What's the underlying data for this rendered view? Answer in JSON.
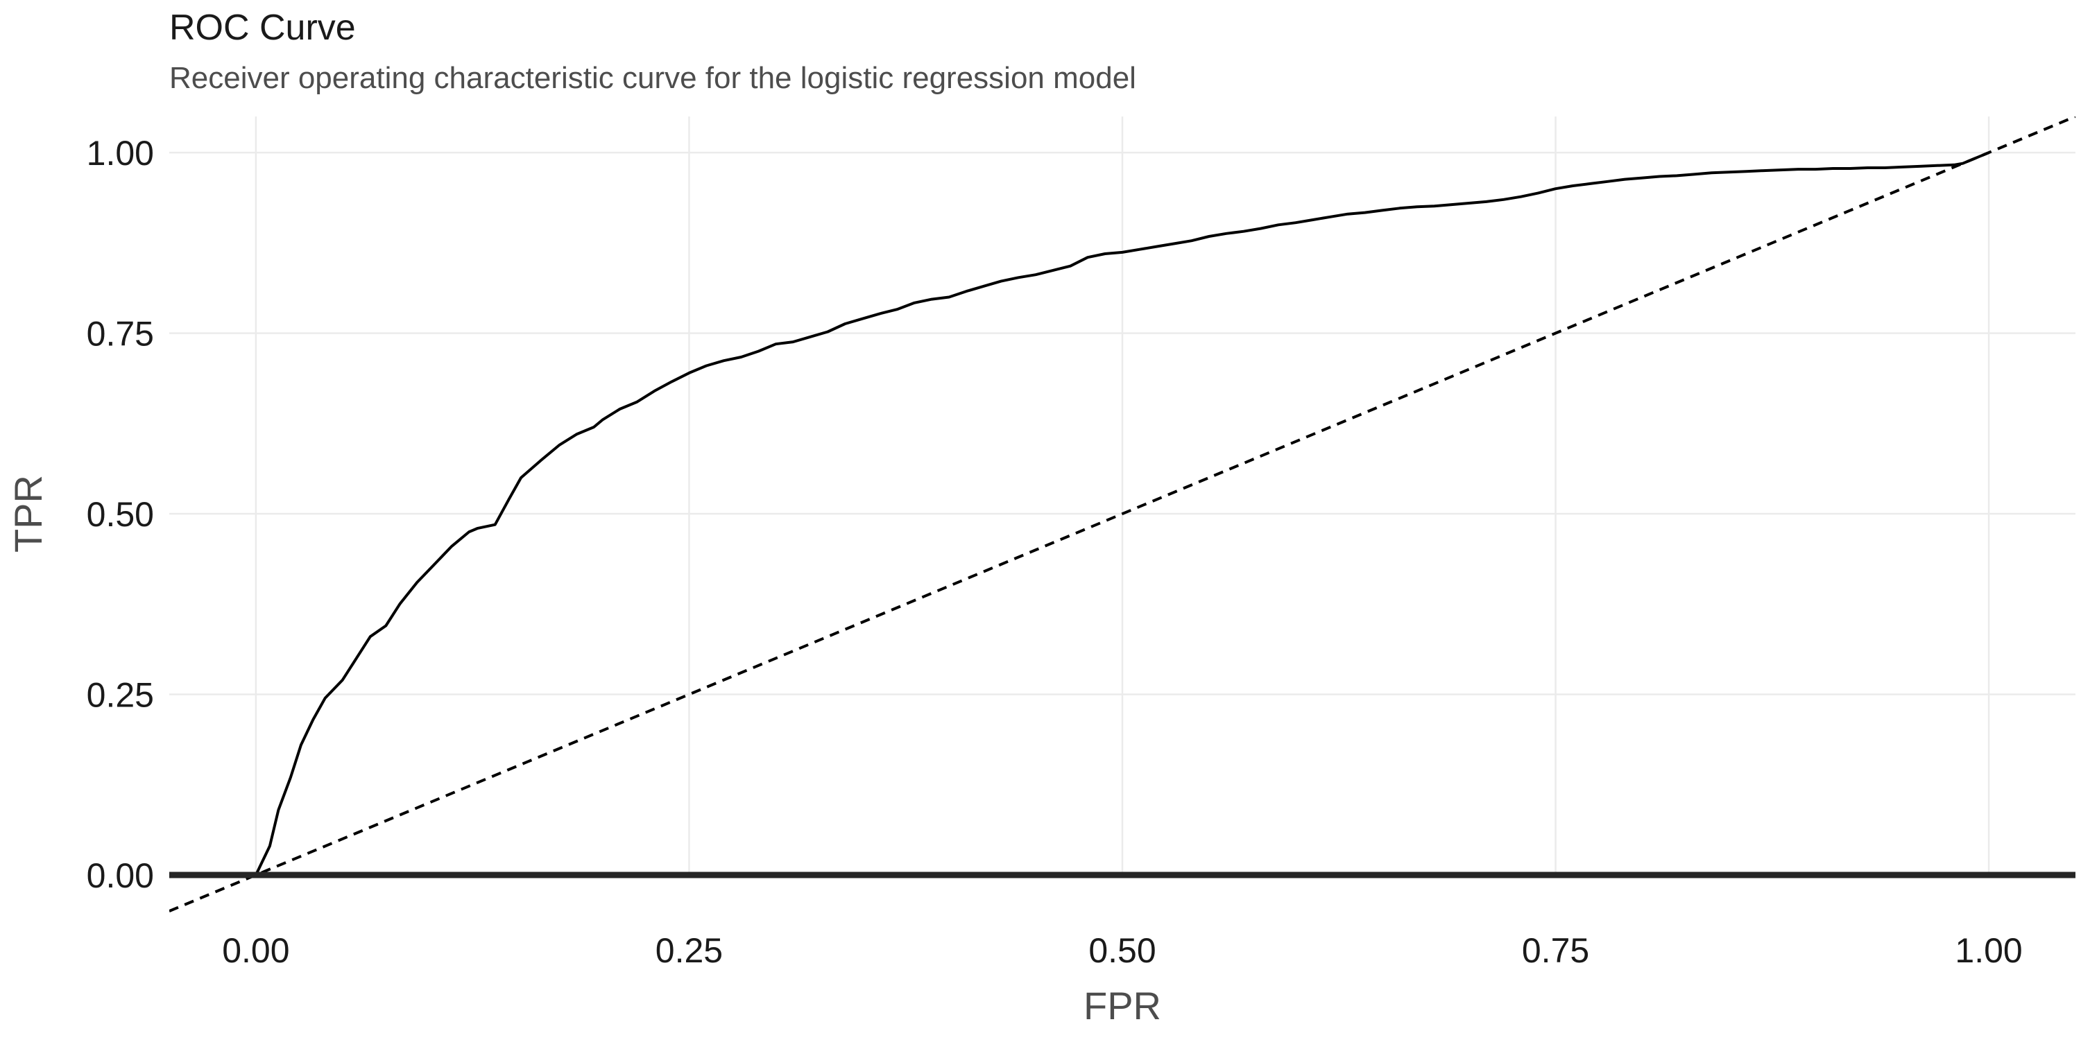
{
  "chart_data": {
    "type": "line",
    "title": "ROC Curve",
    "subtitle": "Receiver operating characteristic curve for the logistic regression model",
    "xlabel": "FPR",
    "ylabel": "TPR",
    "xlim": [
      -0.05,
      1.05
    ],
    "ylim": [
      0,
      1.05
    ],
    "x_ticks": [
      "0.00",
      "0.25",
      "0.50",
      "0.75",
      "1.00"
    ],
    "y_ticks": [
      "0.00",
      "0.25",
      "0.50",
      "0.75",
      "1.00"
    ],
    "grid": true,
    "legend": "none",
    "series": [
      {
        "style": "solid",
        "color": "#000000",
        "x": [
          0.0,
          0.008,
          0.013,
          0.02,
          0.026,
          0.033,
          0.04,
          0.05,
          0.058,
          0.066,
          0.075,
          0.083,
          0.093,
          0.103,
          0.113,
          0.123,
          0.128,
          0.138,
          0.146,
          0.153,
          0.165,
          0.175,
          0.185,
          0.195,
          0.2,
          0.21,
          0.22,
          0.23,
          0.24,
          0.25,
          0.26,
          0.27,
          0.28,
          0.29,
          0.3,
          0.31,
          0.32,
          0.33,
          0.34,
          0.35,
          0.36,
          0.37,
          0.38,
          0.39,
          0.4,
          0.41,
          0.42,
          0.43,
          0.44,
          0.45,
          0.46,
          0.47,
          0.48,
          0.49,
          0.5,
          0.51,
          0.52,
          0.53,
          0.54,
          0.55,
          0.56,
          0.57,
          0.58,
          0.59,
          0.6,
          0.61,
          0.62,
          0.63,
          0.64,
          0.65,
          0.66,
          0.67,
          0.68,
          0.69,
          0.7,
          0.71,
          0.72,
          0.73,
          0.74,
          0.75,
          0.76,
          0.77,
          0.78,
          0.79,
          0.8,
          0.81,
          0.82,
          0.83,
          0.84,
          0.85,
          0.86,
          0.87,
          0.88,
          0.89,
          0.9,
          0.91,
          0.92,
          0.93,
          0.94,
          0.95,
          0.96,
          0.97,
          0.98,
          0.985,
          0.99,
          0.995,
          1.0
        ],
        "y": [
          0.0,
          0.04,
          0.09,
          0.135,
          0.18,
          0.215,
          0.245,
          0.27,
          0.3,
          0.33,
          0.345,
          0.375,
          0.405,
          0.43,
          0.455,
          0.475,
          0.48,
          0.485,
          0.52,
          0.55,
          0.575,
          0.595,
          0.61,
          0.62,
          0.63,
          0.645,
          0.655,
          0.67,
          0.683,
          0.695,
          0.705,
          0.712,
          0.717,
          0.725,
          0.735,
          0.738,
          0.745,
          0.752,
          0.763,
          0.77,
          0.777,
          0.783,
          0.792,
          0.797,
          0.8,
          0.808,
          0.815,
          0.822,
          0.827,
          0.831,
          0.837,
          0.843,
          0.855,
          0.86,
          0.862,
          0.866,
          0.87,
          0.874,
          0.878,
          0.884,
          0.888,
          0.891,
          0.895,
          0.9,
          0.903,
          0.907,
          0.911,
          0.915,
          0.917,
          0.92,
          0.923,
          0.925,
          0.926,
          0.928,
          0.93,
          0.932,
          0.935,
          0.939,
          0.944,
          0.95,
          0.954,
          0.957,
          0.96,
          0.963,
          0.965,
          0.967,
          0.968,
          0.97,
          0.972,
          0.973,
          0.974,
          0.975,
          0.976,
          0.977,
          0.977,
          0.978,
          0.978,
          0.979,
          0.979,
          0.98,
          0.981,
          0.982,
          0.983,
          0.985,
          0.99,
          0.995,
          1.0
        ]
      },
      {
        "style": "dashed",
        "color": "#000000",
        "x": [
          -0.05,
          1.05
        ],
        "y": [
          -0.05,
          1.05
        ]
      }
    ]
  }
}
